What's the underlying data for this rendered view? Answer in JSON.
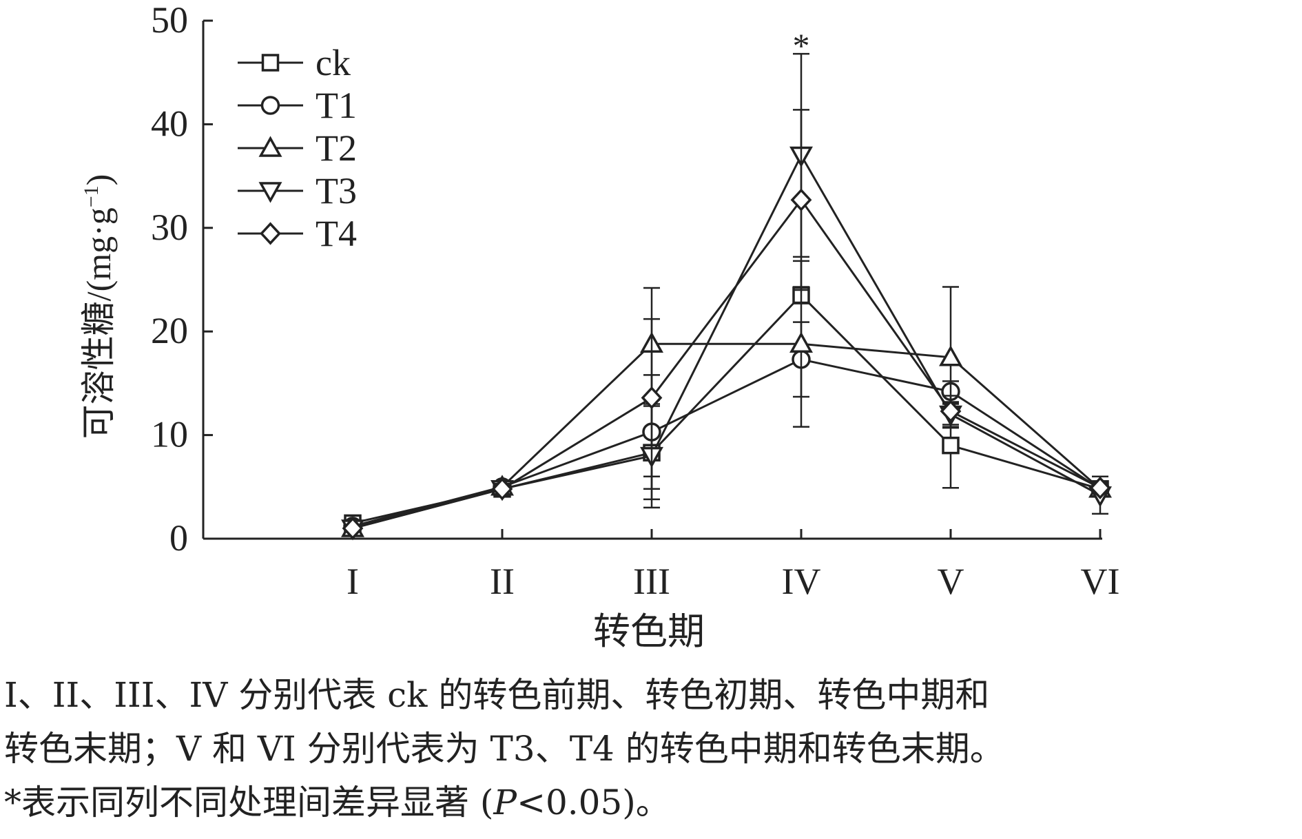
{
  "chart_data": {
    "type": "line",
    "title": "",
    "xlabel": "转色期",
    "ylabel": "可溶性糖/(mg·g⁻¹)",
    "ylabel_main": "可溶性糖/(mg·g",
    "ylabel_sup": "−1",
    "ylabel_tail": ")",
    "ylim": [
      0,
      50
    ],
    "yticks": [
      "0",
      "10",
      "20",
      "30",
      "40",
      "50"
    ],
    "categories": [
      "I",
      "II",
      "III",
      "IV",
      "V",
      "VI"
    ],
    "legend_position": "top-left",
    "grid": false,
    "series": [
      {
        "name": "ck",
        "marker": "square",
        "values": [
          1.5,
          4.8,
          8.3,
          23.5,
          9.0,
          4.8
        ],
        "err": [
          0.3,
          0.5,
          4.5,
          0.8,
          4.1,
          0.5
        ]
      },
      {
        "name": "T1",
        "marker": "circle",
        "values": [
          1.2,
          5.0,
          10.3,
          17.3,
          14.2,
          4.8
        ],
        "err": [
          0.3,
          0.5,
          5.5,
          3.6,
          1.0,
          0.4
        ]
      },
      {
        "name": "T2",
        "marker": "triangle-up",
        "values": [
          1.0,
          5.0,
          18.8,
          18.8,
          17.5,
          4.8
        ],
        "err": [
          0.3,
          0.5,
          5.4,
          8.0,
          6.8,
          0.4
        ]
      },
      {
        "name": "T3",
        "marker": "triangle-down",
        "values": [
          1.0,
          4.8,
          8.0,
          37.0,
          12.0,
          4.2
        ],
        "err": [
          0.3,
          0.5,
          5.0,
          9.8,
          1.0,
          1.8
        ]
      },
      {
        "name": "T4",
        "marker": "diamond",
        "values": [
          1.0,
          4.8,
          13.6,
          32.7,
          12.3,
          4.9
        ],
        "err": [
          0.3,
          0.5,
          7.6,
          8.7,
          1.5,
          0.4
        ]
      }
    ],
    "annotations": [
      {
        "text": "*",
        "category": "IV",
        "y": 47.8
      }
    ]
  },
  "caption": {
    "line1": "I、II、III、IV 分别代表 ck 的转色前期、转色初期、转色中期和",
    "line2": "转色末期；V 和 VI 分别代表为 T3、T4 的转色中期和转色末期。",
    "line3_pre": "*表示同列不同处理间差异显著 (",
    "line3_p": "P",
    "line3_post": "<0.05)。"
  }
}
